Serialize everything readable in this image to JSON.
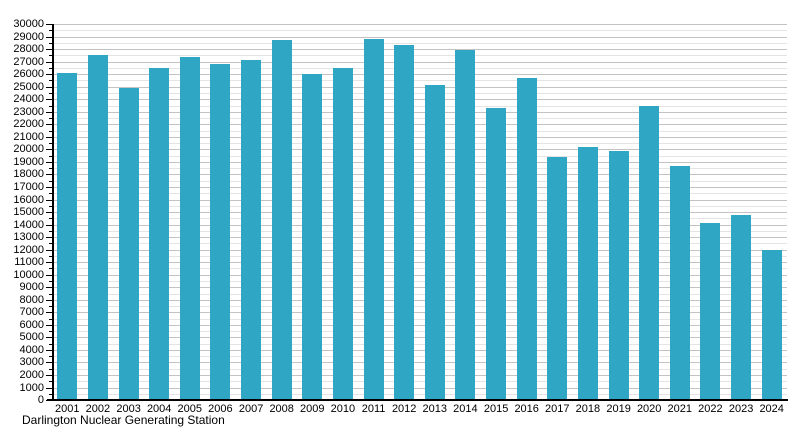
{
  "chart_data": {
    "type": "bar",
    "title": "",
    "caption": "Darlington Nuclear Generating Station",
    "categories": [
      "2001",
      "2002",
      "2003",
      "2004",
      "2005",
      "2006",
      "2007",
      "2008",
      "2009",
      "2010",
      "2011",
      "2012",
      "2013",
      "2014",
      "2015",
      "2016",
      "2017",
      "2018",
      "2019",
      "2020",
      "2021",
      "2022",
      "2023",
      "2024"
    ],
    "values": [
      26100,
      27500,
      24900,
      26500,
      27400,
      26800,
      27100,
      28700,
      26000,
      26500,
      28800,
      28300,
      25100,
      27900,
      23300,
      25700,
      19400,
      20200,
      19900,
      23500,
      18700,
      14100,
      14800,
      12000
    ],
    "xlabel": "",
    "ylabel": "",
    "ylim": [
      0,
      30000
    ],
    "y_tick_step": 1000,
    "y_minor_step": 500,
    "grid": true,
    "legend_position": "none"
  },
  "colors": {
    "bar": "#2fa7c4",
    "grid_major": "#c3c3c3",
    "grid_minor": "#e4e4e4",
    "axis": "#000000",
    "background": "#ffffff",
    "text": "#000000"
  }
}
